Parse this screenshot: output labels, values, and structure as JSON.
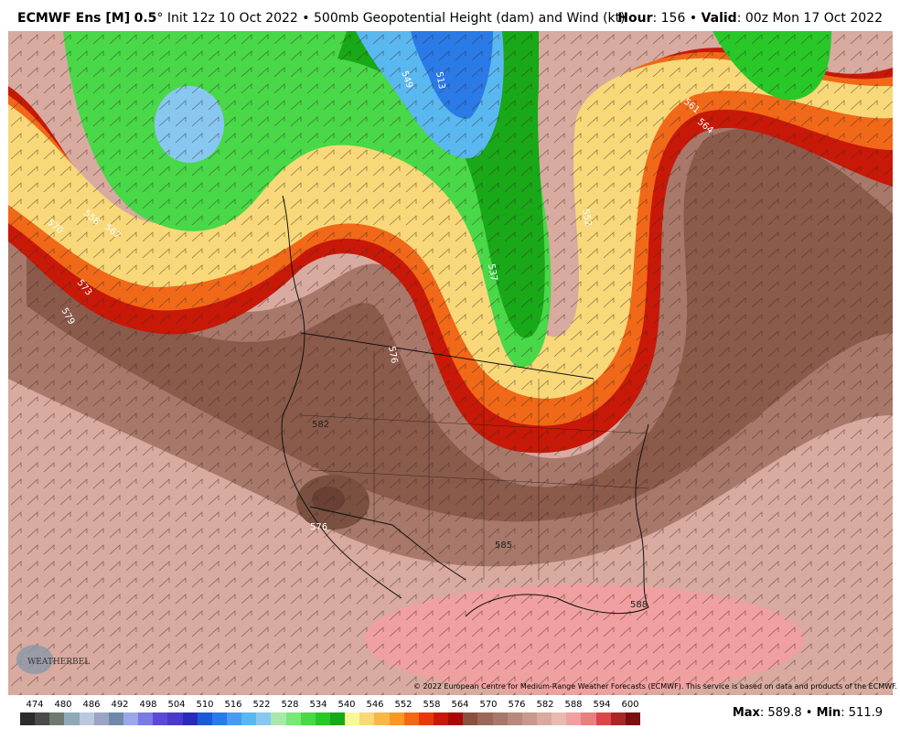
{
  "header": {
    "model": "ECMWF Ens [M]",
    "resolution": "0.5",
    "degree": "°",
    "init": "Init 12z 10 Oct 2022",
    "bullet": "•",
    "field": "500mb Geopotential Height (dam) and Wind (kt)",
    "hour_label": "Hour",
    "hour_value": ": 156",
    "valid_label": "Valid",
    "valid_value": ": 00z Mon 17 Oct 2022"
  },
  "colorbar": {
    "labels": [
      "474",
      "480",
      "486",
      "492",
      "498",
      "504",
      "510",
      "516",
      "522",
      "528",
      "534",
      "540",
      "546",
      "552",
      "558",
      "564",
      "570",
      "576",
      "582",
      "588",
      "594",
      "600"
    ],
    "colors": [
      "#2b2b2b",
      "#4a4a4a",
      "#6e7a6e",
      "#8fa9b8",
      "#b9c8dc",
      "#9aa4c4",
      "#6e8aa8",
      "#9aa8e8",
      "#7a7ae0",
      "#5a4ad4",
      "#4a3ac8",
      "#2a2ab8",
      "#1a5ad8",
      "#2a7ae8",
      "#4a9af0",
      "#5ab8f0",
      "#88c8f0",
      "#a8e8a8",
      "#78e878",
      "#48d848",
      "#28c828",
      "#18a818",
      "#f8f898",
      "#f8d878",
      "#f8b848",
      "#f89828",
      "#f06818",
      "#e83808",
      "#c81808",
      "#a80808",
      "#8a5040",
      "#9a6858",
      "#a8786a",
      "#b8887c",
      "#c8988e",
      "#d8aaa0",
      "#e8bab2",
      "#f0a0a0",
      "#e88080",
      "#d84848",
      "#a82828",
      "#781010"
    ]
  },
  "stats": {
    "max_label": "Max",
    "max_value": ": 589.8",
    "sep": "•",
    "min_label": "Min",
    "min_value": ": 511.9"
  },
  "copyright": "© 2022 European Centre for Medium-Range Weather Forecasts (ECMWF). This service is based on data and products of the ECMWF.",
  "logo": "WEATHERBELL",
  "contour_labels": [
    "513",
    "549",
    "561",
    "564",
    "570",
    "558",
    "567",
    "573",
    "576",
    "579",
    "582",
    "585",
    "588",
    "537",
    "552",
    "576"
  ],
  "colors": {
    "trough_green": "#2aa82a",
    "ridge_brown": "#8a6050",
    "subtropical_pink": "#f0a0a0",
    "jet_red": "#d82808"
  }
}
